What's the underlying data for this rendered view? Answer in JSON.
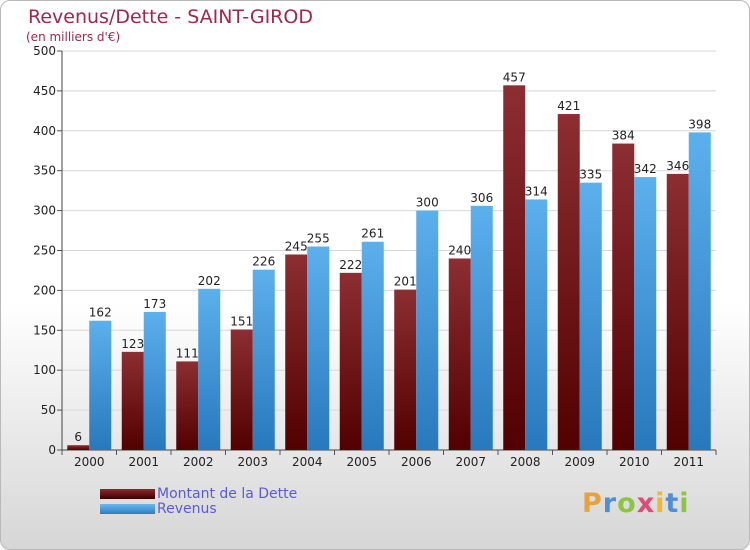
{
  "header": {
    "title": "Revenus/Dette - SAINT-GIROD",
    "subtitle": "(en milliers d'€)"
  },
  "logo": {
    "text": "Proxiti",
    "letters": [
      "P",
      "r",
      "o",
      "x",
      "i",
      "t",
      "i"
    ],
    "colors": [
      "#e8a23c",
      "#4f8fd6",
      "#8cc63e",
      "#e04a7a",
      "#f0b92b",
      "#4f8fd6",
      "#8cc63e"
    ]
  },
  "chart_data": {
    "type": "bar",
    "categories": [
      "2000",
      "2001",
      "2002",
      "2003",
      "2004",
      "2005",
      "2006",
      "2007",
      "2008",
      "2009",
      "2010",
      "2011"
    ],
    "series": [
      {
        "name": "Montant de la Dette",
        "color": "#7a1e22",
        "values": [
          6,
          123,
          111,
          151,
          245,
          222,
          201,
          240,
          457,
          421,
          384,
          346
        ]
      },
      {
        "name": "Revenus",
        "color": "#3d9be0",
        "values": [
          162,
          173,
          202,
          226,
          255,
          261,
          300,
          306,
          314,
          335,
          342,
          398
        ]
      }
    ],
    "yticks": [
      0,
      50,
      100,
      150,
      200,
      250,
      300,
      350,
      400,
      450,
      500
    ],
    "ylim": [
      0,
      500
    ],
    "grid": true,
    "legend": "bottom-left"
  }
}
